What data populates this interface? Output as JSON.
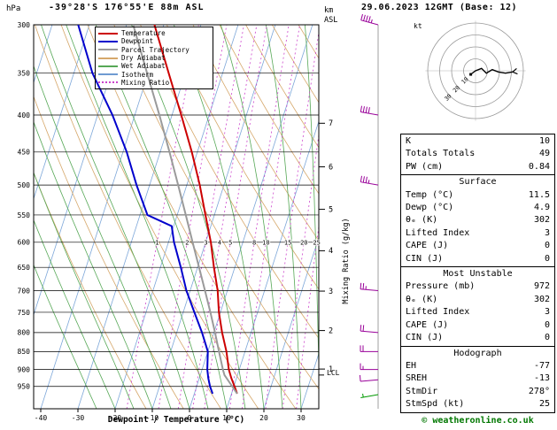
{
  "header": {
    "pressure_unit": "hPa",
    "station": "-39°28'S 176°55'E 88m ASL",
    "datetime": "29.06.2023 12GMT (Base: 12)",
    "alt_unit_line1": "km",
    "alt_unit_line2": "ASL"
  },
  "axes": {
    "x_label": "Dewpoint / Temperature (°C)",
    "right_label": "Mixing Ratio (g/kg)",
    "lcl_label": "LCL"
  },
  "legend": {
    "items": [
      {
        "label": "Temperature",
        "color": "#cc0000",
        "style": "solid"
      },
      {
        "label": "Dewpoint",
        "color": "#0000cc",
        "style": "solid"
      },
      {
        "label": "Parcel Trajectory",
        "color": "#9a9a9a",
        "style": "solid"
      },
      {
        "label": "Dry Adiabat",
        "color": "#d6a86b",
        "style": "solid"
      },
      {
        "label": "Wet Adiabat",
        "color": "#57a857",
        "style": "solid"
      },
      {
        "label": "Isotherm",
        "color": "#6f9bd2",
        "style": "solid"
      },
      {
        "label": "Mixing Ratio",
        "color": "#cc44cc",
        "style": "dotted"
      }
    ]
  },
  "chart_data": {
    "type": "skewt_sounding",
    "title": "-39°28'S 176°55'E 88m ASL",
    "valid": "29.06.2023 12GMT (Base: 12)",
    "pressure_ticks_hpa": [
      300,
      350,
      400,
      450,
      500,
      550,
      600,
      650,
      700,
      750,
      800,
      850,
      900,
      950
    ],
    "pressure_range_hpa": [
      300,
      1020
    ],
    "temp_ticks_c": [
      -40,
      -30,
      -20,
      -10,
      0,
      10,
      20,
      30
    ],
    "km_ticks_asl": [
      1,
      2,
      3,
      4,
      5,
      6,
      7
    ],
    "mixing_ratio_lines_gkg": [
      1,
      2,
      3,
      4,
      5,
      8,
      10,
      15,
      20,
      25
    ],
    "lcl_pressure_hpa": 916,
    "background": {
      "isotherm": {
        "color": "#7da7d9",
        "step_c": 10
      },
      "dry_adiabat": {
        "color": "#d6a86b",
        "step_k": 10
      },
      "wet_adiabat": {
        "color": "#57a857",
        "step_c": 5
      },
      "mixing_ratio": {
        "color": "#cc44cc"
      }
    },
    "series": [
      {
        "name": "Temperature",
        "color": "#cc0000",
        "width": 2,
        "points_p_t": [
          [
            972,
            11.5
          ],
          [
            950,
            10.2
          ],
          [
            925,
            8.6
          ],
          [
            900,
            7.2
          ],
          [
            850,
            5.0
          ],
          [
            800,
            2.2
          ],
          [
            750,
            -0.4
          ],
          [
            700,
            -2.6
          ],
          [
            650,
            -5.6
          ],
          [
            600,
            -8.6
          ],
          [
            550,
            -12.4
          ],
          [
            500,
            -16.5
          ],
          [
            450,
            -21.5
          ],
          [
            400,
            -27.5
          ],
          [
            350,
            -34.5
          ],
          [
            300,
            -42.5
          ]
        ]
      },
      {
        "name": "Dewpoint",
        "color": "#0000cc",
        "width": 2,
        "points_p_t": [
          [
            972,
            4.9
          ],
          [
            950,
            3.6
          ],
          [
            925,
            2.4
          ],
          [
            900,
            1.4
          ],
          [
            850,
            0.0
          ],
          [
            800,
            -3.2
          ],
          [
            750,
            -7.0
          ],
          [
            700,
            -11.0
          ],
          [
            650,
            -14.5
          ],
          [
            600,
            -18.5
          ],
          [
            570,
            -20.5
          ],
          [
            550,
            -28.0
          ],
          [
            500,
            -33.5
          ],
          [
            450,
            -39.0
          ],
          [
            400,
            -46.0
          ],
          [
            350,
            -55.0
          ],
          [
            300,
            -63.0
          ]
        ]
      },
      {
        "name": "Parcel Trajectory",
        "color": "#9a9a9a",
        "width": 2,
        "points_p_t": [
          [
            972,
            11.5
          ],
          [
            916,
            6.5
          ],
          [
            900,
            5.6
          ],
          [
            850,
            3.0
          ],
          [
            800,
            0.3
          ],
          [
            750,
            -2.7
          ],
          [
            700,
            -6.0
          ],
          [
            650,
            -9.6
          ],
          [
            600,
            -13.5
          ],
          [
            550,
            -17.7
          ],
          [
            500,
            -22.3
          ],
          [
            450,
            -27.5
          ],
          [
            400,
            -33.4
          ],
          [
            350,
            -40.3
          ],
          [
            300,
            -48.2
          ]
        ]
      }
    ],
    "wind_barbs": [
      {
        "p": 300,
        "speed_kt": 45,
        "dir_deg": 285,
        "color": "#990099"
      },
      {
        "p": 400,
        "speed_kt": 40,
        "dir_deg": 280,
        "color": "#990099"
      },
      {
        "p": 500,
        "speed_kt": 35,
        "dir_deg": 280,
        "color": "#990099"
      },
      {
        "p": 700,
        "speed_kt": 25,
        "dir_deg": 275,
        "color": "#990099"
      },
      {
        "p": 800,
        "speed_kt": 20,
        "dir_deg": 275,
        "color": "#990099"
      },
      {
        "p": 850,
        "speed_kt": 20,
        "dir_deg": 270,
        "color": "#990099"
      },
      {
        "p": 900,
        "speed_kt": 15,
        "dir_deg": 270,
        "color": "#990099"
      },
      {
        "p": 930,
        "speed_kt": 10,
        "dir_deg": 265,
        "color": "#990099"
      },
      {
        "p": 975,
        "speed_kt": 8,
        "dir_deg": 260,
        "color": "#009900"
      }
    ],
    "hodograph": {
      "unit": "kt",
      "ring_step_kt": 10,
      "num_rings": 4,
      "ring_labels": [
        10,
        20,
        30
      ],
      "trace_u_v_kt": [
        [
          -4,
          -3
        ],
        [
          0,
          0
        ],
        [
          5,
          2
        ],
        [
          9,
          -2
        ],
        [
          14,
          1
        ],
        [
          19,
          -1
        ],
        [
          25,
          -2
        ],
        [
          31,
          -1
        ]
      ]
    }
  },
  "stats": {
    "general": {
      "rows": [
        {
          "label": "K",
          "value": "10"
        },
        {
          "label": "Totals Totals",
          "value": "49"
        },
        {
          "label": "PW (cm)",
          "value": "0.84"
        }
      ]
    },
    "surface": {
      "title": "Surface",
      "rows": [
        {
          "label": "Temp (°C)",
          "value": "11.5"
        },
        {
          "label": "Dewp (°C)",
          "value": "4.9"
        },
        {
          "label": "θₑ (K)",
          "value": "302"
        },
        {
          "label": "Lifted Index",
          "value": "3"
        },
        {
          "label": "CAPE (J)",
          "value": "0"
        },
        {
          "label": "CIN (J)",
          "value": "0"
        }
      ]
    },
    "most_unstable": {
      "title": "Most Unstable",
      "rows": [
        {
          "label": "Pressure (mb)",
          "value": "972"
        },
        {
          "label": "θₑ (K)",
          "value": "302"
        },
        {
          "label": "Lifted Index",
          "value": "3"
        },
        {
          "label": "CAPE (J)",
          "value": "0"
        },
        {
          "label": "CIN (J)",
          "value": "0"
        }
      ]
    },
    "hodograph": {
      "title": "Hodograph",
      "rows": [
        {
          "label": "EH",
          "value": "-77"
        },
        {
          "label": "SREH",
          "value": "-13"
        },
        {
          "label": "StmDir",
          "value": "278°"
        },
        {
          "label": "StmSpd (kt)",
          "value": "25"
        }
      ]
    }
  },
  "footer": {
    "credit": "© weatheronline.co.uk"
  }
}
